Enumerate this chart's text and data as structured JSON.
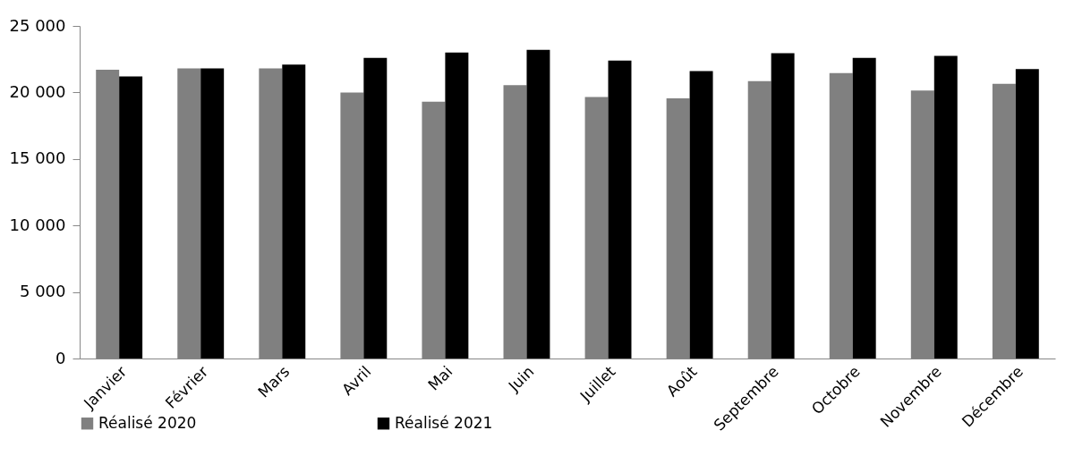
{
  "chart_data": {
    "type": "bar",
    "categories": [
      "Janvier",
      "Février",
      "Mars",
      "Avril",
      "Mai",
      "Juin",
      "Juillet",
      "Août",
      "Septembre",
      "Octobre",
      "Novembre",
      "Décembre"
    ],
    "series": [
      {
        "name": "Réalisé 2020",
        "color": "#808080",
        "values": [
          21700,
          21800,
          21800,
          20000,
          19300,
          20550,
          19650,
          19550,
          20850,
          21450,
          20150,
          20650
        ]
      },
      {
        "name": "Réalisé 2021",
        "color": "#000000",
        "values": [
          21200,
          21800,
          22100,
          22600,
          23000,
          23200,
          22400,
          21600,
          22950,
          22600,
          22750,
          21750
        ]
      }
    ],
    "ylim": [
      0,
      25000
    ],
    "yticks": [
      {
        "value": 0,
        "label": "0"
      },
      {
        "value": 5000,
        "label": "5 000"
      },
      {
        "value": 10000,
        "label": "10 000"
      },
      {
        "value": 15000,
        "label": "15 000"
      },
      {
        "value": 20000,
        "label": "20 000"
      },
      {
        "value": 25000,
        "label": "25 000"
      }
    ],
    "grid": false,
    "legend": "bottom left"
  }
}
